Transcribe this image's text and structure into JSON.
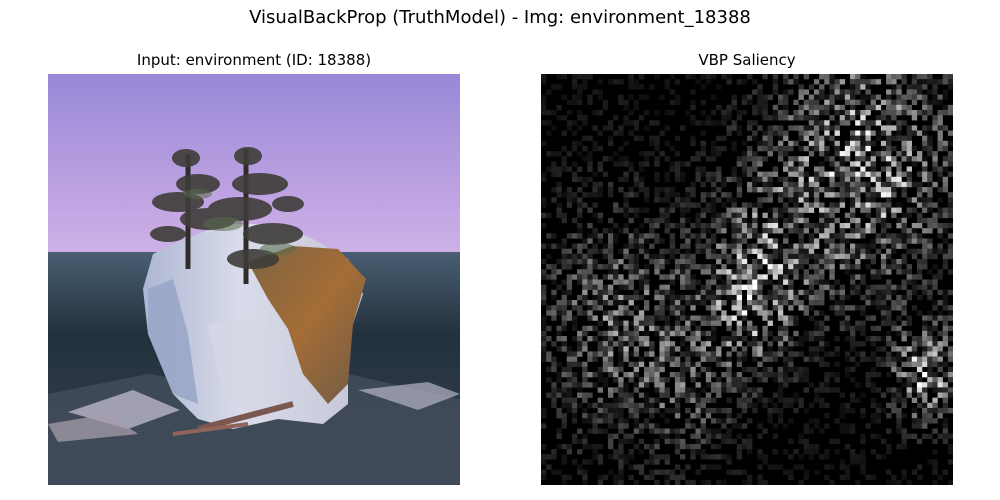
{
  "figure": {
    "title": "VisualBackProp (TruthModel) - Img: environment_18388"
  },
  "panels": [
    {
      "title": "Input: environment (ID: 18388)",
      "content": "photo"
    },
    {
      "title": "VBP Saliency",
      "content": "grayscale-saliency-map"
    }
  ],
  "colors": {
    "sky_top": "#9a87d6",
    "sky_glow": "#d8b7e9",
    "water": "#243744",
    "rock": "#bfc5da",
    "moss": "#8d6738",
    "tree": "#3d3d3d",
    "saliency_background": "#000000",
    "saliency_highlight": "#ffffff"
  }
}
